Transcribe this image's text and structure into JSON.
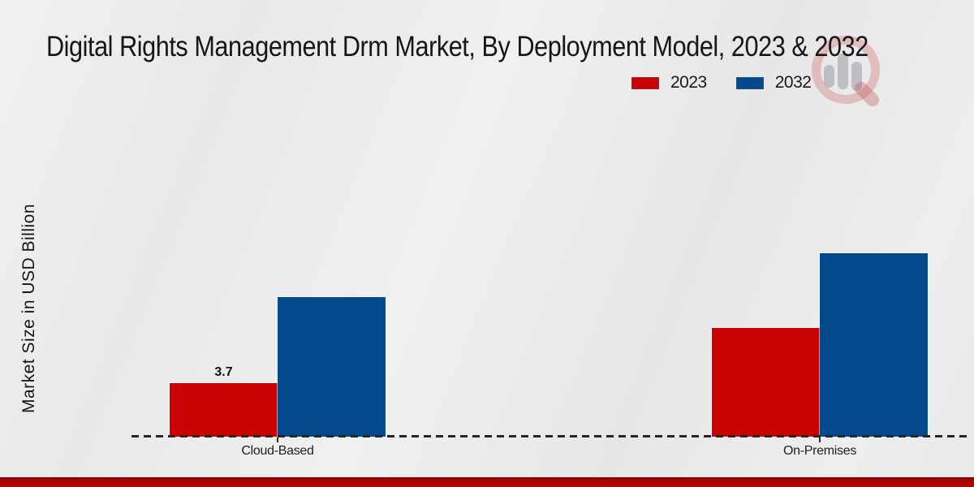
{
  "title": "Digital Rights Management Drm Market, By Deployment Model, 2023 & 2032",
  "ylabel": "Market Size in USD Billion",
  "legend": {
    "items": [
      {
        "label": "2023",
        "color": "#c90303"
      },
      {
        "label": "2032",
        "color": "#03498c"
      }
    ]
  },
  "chart_data": {
    "type": "bar",
    "title": "Digital Rights Management Drm Market, By Deployment Model, 2023 & 2032",
    "categories": [
      "Cloud-Based",
      "On-Premises"
    ],
    "series": [
      {
        "name": "2023",
        "color": "#c90303",
        "values": [
          3.7,
          7.5
        ]
      },
      {
        "name": "2032",
        "color": "#03498c",
        "values": [
          9.6,
          12.6
        ]
      }
    ],
    "xlabel": "",
    "ylabel": "Market Size in USD Billion",
    "ylim": [
      0,
      14
    ],
    "grid": false,
    "legend_position": "top-right",
    "baseline_style": "dashed",
    "data_labels": [
      {
        "series": "2023",
        "category": "Cloud-Based",
        "text": "3.7"
      }
    ]
  },
  "watermark": {
    "icon": "magnifier-bar-chart-logo"
  },
  "colors": {
    "accent_red": "#c90303",
    "accent_blue": "#03498c",
    "footer_band": "#bd0202",
    "background": "#ebebec",
    "text": "#1a1a1a"
  }
}
